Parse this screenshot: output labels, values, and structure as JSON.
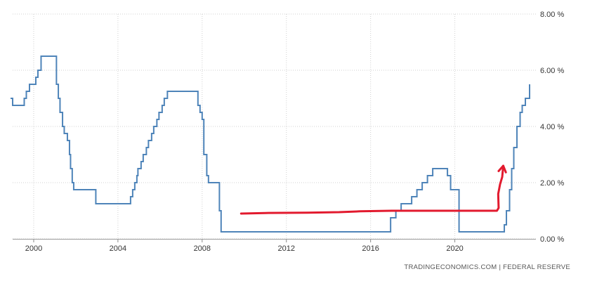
{
  "chart_data": {
    "type": "line",
    "title": "",
    "xlabel": "",
    "ylabel": "",
    "xlim": [
      1999.0,
      2023.85
    ],
    "ylim": [
      0,
      8
    ],
    "grid": true,
    "x_ticks": [
      2000,
      2004,
      2008,
      2012,
      2016,
      2020
    ],
    "x_tick_labels": [
      "2000",
      "2004",
      "2008",
      "2012",
      "2016",
      "2020"
    ],
    "y_ticks": [
      0,
      2,
      4,
      6,
      8
    ],
    "y_tick_labels": [
      "0.00 %",
      "2.00 %",
      "4.00 %",
      "6.00 %",
      "8.00 %"
    ],
    "series": [
      {
        "color": "#4e84b9",
        "x": [
          1998.9,
          1999.0,
          1999.1,
          1999.55,
          1999.65,
          1999.8,
          1999.95,
          2000.1,
          2000.2,
          2000.35,
          2001.0,
          2001.08,
          2001.17,
          2001.25,
          2001.37,
          2001.45,
          2001.6,
          2001.7,
          2001.75,
          2001.83,
          2001.9,
          2001.95,
          2002.85,
          2002.95,
          2003.5,
          2004.5,
          2004.6,
          2004.7,
          2004.8,
          2004.9,
          2004.95,
          2005.1,
          2005.2,
          2005.35,
          2005.45,
          2005.6,
          2005.7,
          2005.85,
          2005.95,
          2006.1,
          2006.2,
          2006.35,
          2006.5,
          2007.7,
          2007.8,
          2007.9,
          2008.0,
          2008.08,
          2008.22,
          2008.3,
          2008.32,
          2008.82,
          2008.9,
          2009.0,
          2015.96,
          2016.95,
          2017.2,
          2017.45,
          2017.95,
          2018.2,
          2018.45,
          2018.7,
          2018.95,
          2019.55,
          2019.65,
          2019.8,
          2020.2,
          2022.2,
          2022.35,
          2022.45,
          2022.6,
          2022.7,
          2022.8,
          2022.95,
          2023.1,
          2023.2,
          2023.35,
          2023.55
        ],
        "y": [
          5.0,
          4.75,
          4.75,
          5.0,
          5.25,
          5.5,
          5.5,
          5.75,
          6.0,
          6.5,
          6.5,
          5.5,
          5.0,
          4.5,
          4.0,
          3.75,
          3.5,
          3.0,
          2.5,
          2.0,
          1.75,
          1.75,
          1.75,
          1.25,
          1.25,
          1.25,
          1.5,
          1.75,
          2.0,
          2.25,
          2.5,
          2.75,
          3.0,
          3.25,
          3.5,
          3.75,
          4.0,
          4.25,
          4.5,
          4.75,
          5.0,
          5.25,
          5.25,
          5.25,
          4.75,
          4.5,
          4.25,
          3.0,
          2.25,
          2.0,
          2.0,
          1.0,
          0.25,
          0.25,
          0.25,
          0.75,
          1.0,
          1.25,
          1.5,
          1.75,
          2.0,
          2.25,
          2.5,
          2.5,
          2.25,
          1.75,
          0.25,
          0.25,
          0.5,
          1.0,
          1.75,
          2.5,
          3.25,
          4.0,
          4.5,
          4.75,
          5.0,
          5.5
        ],
        "stepped": true
      }
    ],
    "annotations": [
      {
        "type": "hand-drawn-line-with-arrow",
        "color": "#e21a2e",
        "x": [
          2009.85,
          2011.0,
          2013.0,
          2014.5,
          2015.5,
          2017.0,
          2020.0,
          2022.0,
          2022.08,
          2022.06,
          2022.15,
          2022.25,
          2022.3
        ],
        "y": [
          0.9,
          0.92,
          0.93,
          0.95,
          0.98,
          1.0,
          1.0,
          1.0,
          1.1,
          1.6,
          1.95,
          2.2,
          2.6
        ]
      }
    ]
  },
  "source": "TRADINGECONOMICS.COM  |  FEDERAL RESERVE"
}
